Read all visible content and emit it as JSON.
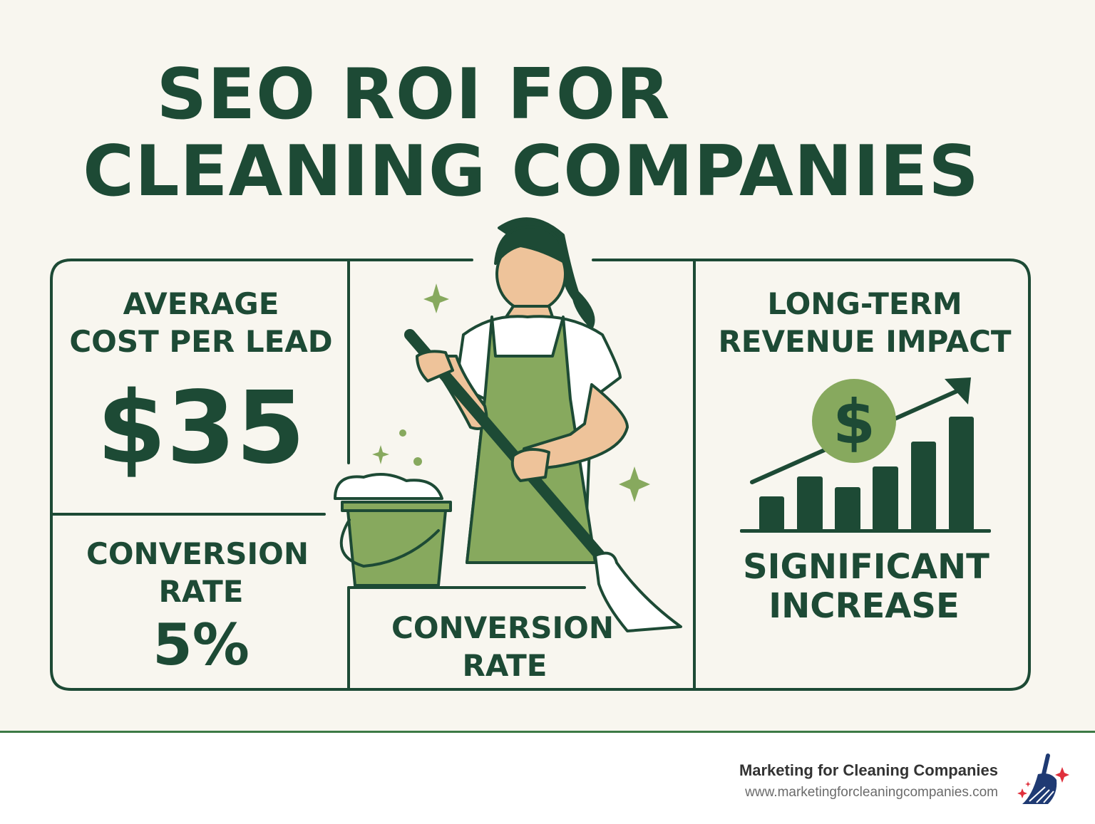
{
  "title": {
    "line1": "SEO ROI FOR",
    "line2": "CLEANING COMPANIES"
  },
  "panels": {
    "cost_per_lead": {
      "label_line1": "AVERAGE",
      "label_line2": "COST PER LEAD",
      "value": "$35"
    },
    "conversion_left": {
      "label_line1": "CONVERSION",
      "label_line2": "RATE",
      "value": "5%"
    },
    "conversion_center": {
      "label_line1": "CONVERSION",
      "label_line2": "RATE"
    },
    "revenue": {
      "label_line1": "LONG-TERM",
      "label_line2": "REVENUE IMPACT",
      "result_line1": "SIGNIFICANT",
      "result_line2": "INCREASE",
      "icon": "dollar-growth-chart-icon"
    }
  },
  "footer": {
    "brand": "Marketing for Cleaning Companies",
    "url": "www.marketingforcleaningcompanies.com",
    "logo": "broom-logo-icon"
  },
  "colors": {
    "dark_green": "#1d4a35",
    "light_green": "#87a95e",
    "background": "#f8f6ef",
    "logo_blue": "#1f3a73",
    "logo_red": "#e0303c"
  }
}
